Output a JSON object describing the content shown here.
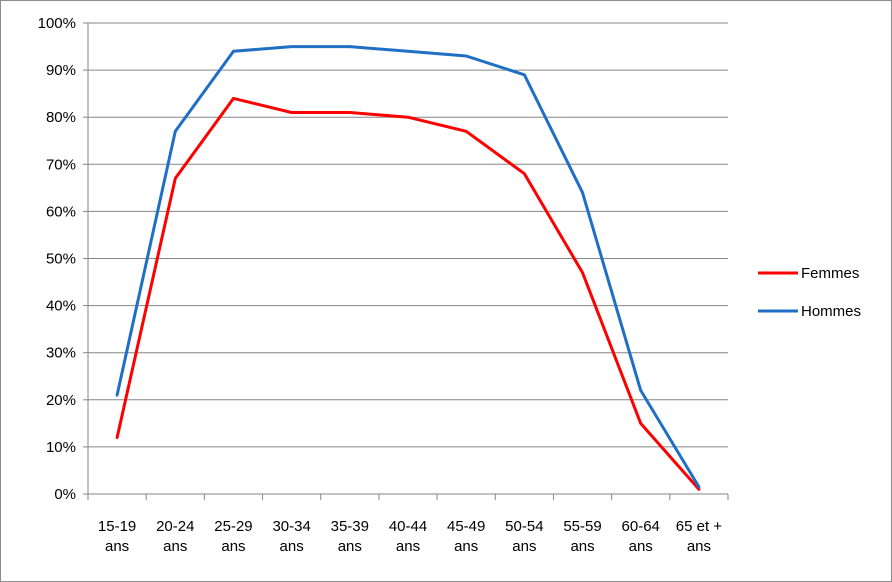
{
  "chart_data": {
    "type": "line",
    "categories": [
      [
        "15-19",
        "ans"
      ],
      [
        "20-24",
        "ans"
      ],
      [
        "25-29",
        "ans"
      ],
      [
        "30-34",
        "ans"
      ],
      [
        "35-39",
        "ans"
      ],
      [
        "40-44",
        "ans"
      ],
      [
        "45-49",
        "ans"
      ],
      [
        "50-54",
        "ans"
      ],
      [
        "55-59",
        "ans"
      ],
      [
        "60-64",
        "ans"
      ],
      [
        "65 et +",
        "ans"
      ]
    ],
    "series": [
      {
        "name": "Femmes",
        "color": "#ff0000",
        "values": [
          12,
          67,
          84,
          81,
          81,
          80,
          77,
          68,
          47,
          15,
          1
        ]
      },
      {
        "name": "Hommes",
        "color": "#1f6fc6",
        "values": [
          21,
          77,
          94,
          95,
          95,
          94,
          93,
          89,
          64,
          22,
          1.5
        ]
      }
    ],
    "yticks": [
      "0%",
      "10%",
      "20%",
      "30%",
      "40%",
      "50%",
      "60%",
      "70%",
      "80%",
      "90%",
      "100%"
    ],
    "ylim": [
      0,
      100
    ],
    "grid": true,
    "legend": "right"
  }
}
